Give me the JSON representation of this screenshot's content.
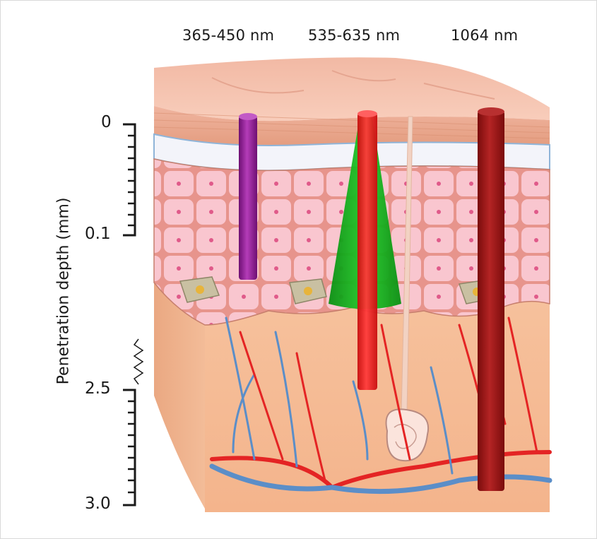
{
  "wavelength_labels": [
    "365-450 nm",
    "535-635 nm",
    "1064 nm"
  ],
  "axis": {
    "title": "Penetration depth (mm)",
    "tick_labels": [
      "0",
      "0.1",
      "2.5",
      "3.0"
    ]
  },
  "beam_colors": {
    "violet": "#9a1f9e",
    "green": "#12b51c",
    "red": "#f01818",
    "dark_red": "#a01818"
  }
}
